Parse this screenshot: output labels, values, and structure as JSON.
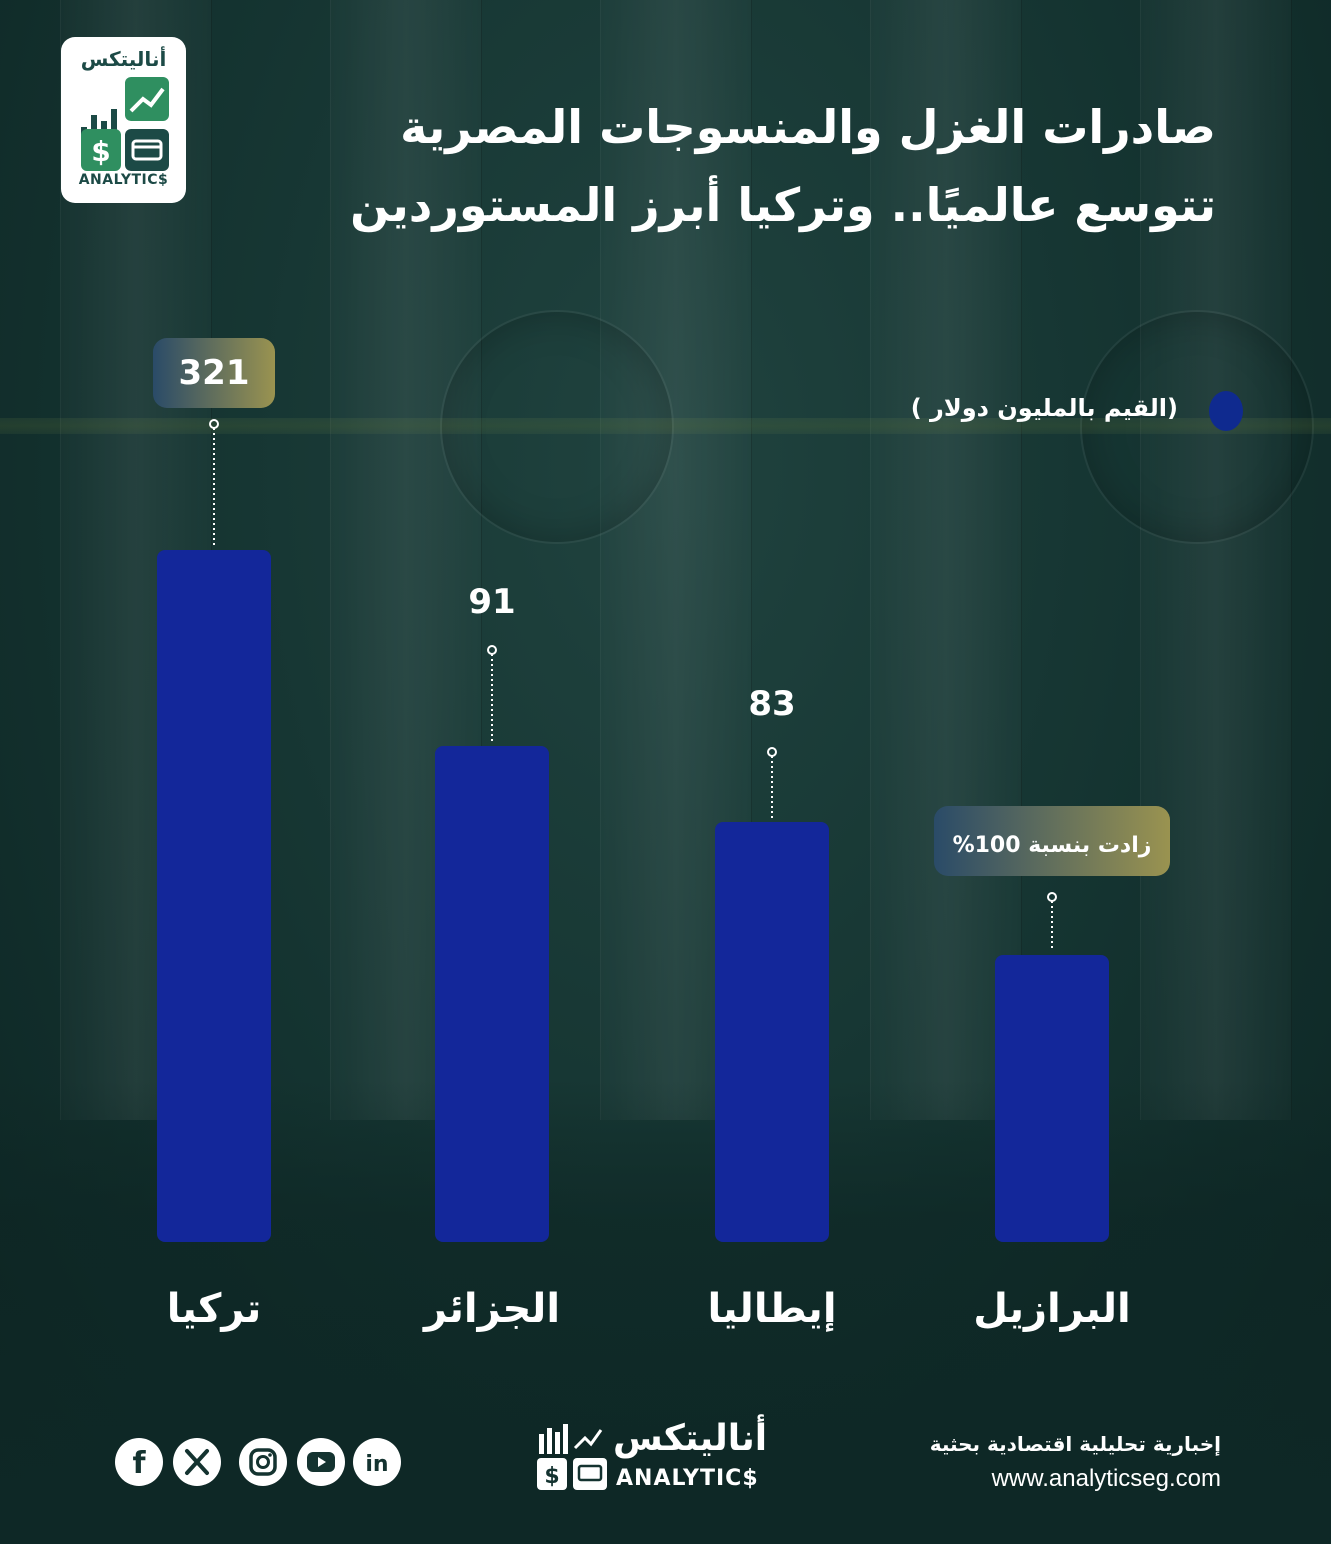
{
  "logo": {
    "arabic": "أناليتكس",
    "latin": "ANALYTIC$"
  },
  "title": {
    "line1": "صادرات الغزل والمنسوجات المصرية",
    "line2": "تتوسع عالميًا.. وتركيا أبرز المستوردين"
  },
  "legend": {
    "text": "(القيم بالمليون دولار )",
    "color": "#0f2a8f"
  },
  "colors": {
    "bar": "#13279a",
    "badge_from": "#2a4b68",
    "badge_to": "#9a9350",
    "background": "#163532"
  },
  "chart_data": {
    "type": "bar",
    "categories": [
      "تركيا",
      "الجزائر",
      "إيطاليا",
      "البرازيل"
    ],
    "values": [
      321,
      91,
      83,
      null
    ],
    "data_labels": [
      "321",
      "91",
      "83",
      "زادت بنسبة 100%"
    ],
    "highlighted_labels": [
      true,
      false,
      false,
      true
    ],
    "unit": "مليون دولار"
  },
  "footer": {
    "logo_arabic": "أناليتكس",
    "logo_latin": "ANALYTIC$",
    "tagline": "إخبارية تحليلية اقتصادية بحثية",
    "url": "www.analyticseg.com",
    "social": [
      "facebook-icon",
      "x-icon",
      "instagram-icon",
      "youtube-icon",
      "linkedin-icon"
    ]
  }
}
